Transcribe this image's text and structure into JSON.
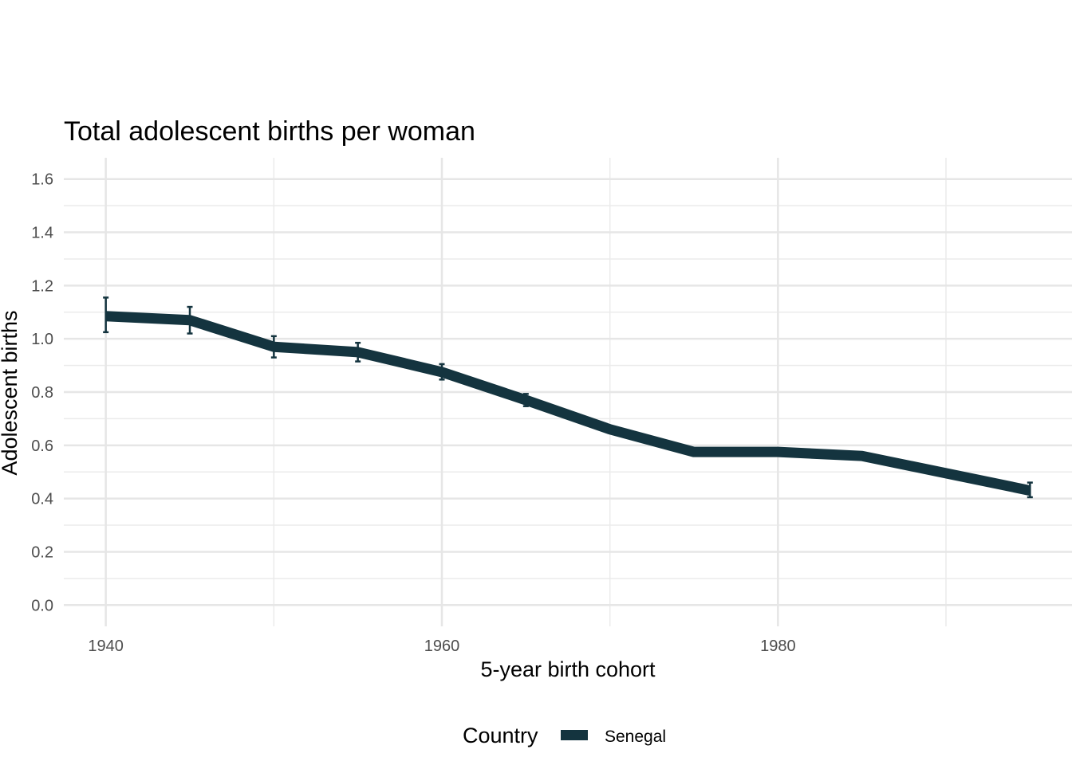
{
  "chart_data": {
    "type": "line",
    "title": "Total adolescent births per woman",
    "xlabel": "5-year birth cohort",
    "ylabel": "Adolescent births",
    "xlim": [
      1937.5,
      1997.5
    ],
    "ylim": [
      -0.08,
      1.68
    ],
    "x_ticks": [
      1940,
      1960,
      1980
    ],
    "x_minor": [
      1950,
      1970,
      1990
    ],
    "y_ticks": [
      0.0,
      0.2,
      0.4,
      0.6,
      0.8,
      1.0,
      1.2,
      1.4,
      1.6
    ],
    "y_tick_labels": [
      "0.0",
      "0.2",
      "0.4",
      "0.6",
      "0.8",
      "1.0",
      "1.2",
      "1.4",
      "1.6"
    ],
    "grid": true,
    "legend": {
      "title": "Country",
      "position": "bottom"
    },
    "series": [
      {
        "name": "Senegal",
        "color": "#14343f",
        "x": [
          1940,
          1945,
          1950,
          1955,
          1960,
          1965,
          1970,
          1975,
          1980,
          1985,
          1990,
          1995
        ],
        "values": [
          1.085,
          1.07,
          0.97,
          0.95,
          0.875,
          0.77,
          0.66,
          0.575,
          0.575,
          0.56,
          0.495,
          0.43
        ],
        "lower": [
          1.025,
          1.02,
          0.93,
          0.915,
          0.847,
          0.747,
          0.647,
          0.567,
          0.567,
          0.553,
          0.487,
          0.405
        ],
        "upper": [
          1.155,
          1.12,
          1.01,
          0.985,
          0.905,
          0.793,
          0.673,
          0.583,
          0.583,
          0.567,
          0.503,
          0.46
        ]
      }
    ]
  }
}
